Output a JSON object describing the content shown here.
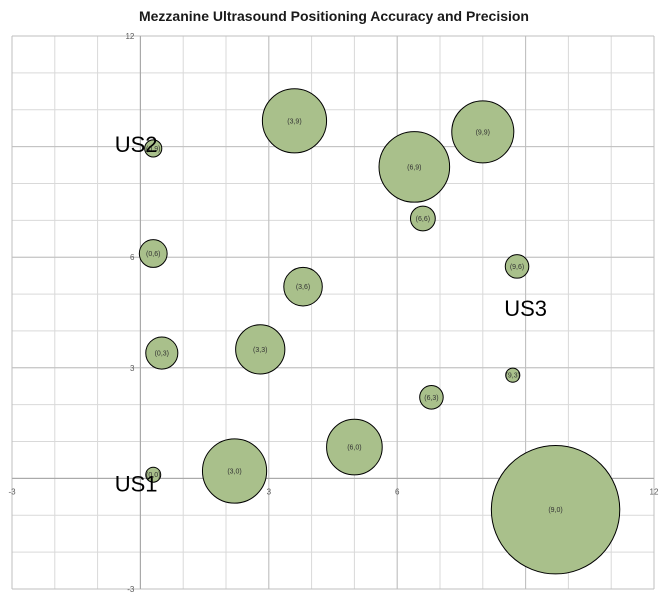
{
  "chart_data": {
    "type": "bubble",
    "title": "Mezzanine Ultrasound Positioning Accuracy and Precision",
    "xlim": [
      -3,
      12
    ],
    "ylim": [
      -3,
      12
    ],
    "x_ticks": [
      "-3",
      "3",
      "6",
      "9",
      "12"
    ],
    "y_ticks": [
      "12",
      "6",
      "3",
      "-3"
    ],
    "grid": true,
    "bubble_color": "#a9c08b",
    "bubble_edge_color": "#000000",
    "points": [
      {
        "label": "(0,0)",
        "x": 0.3,
        "y": 0.1,
        "size": 0.35
      },
      {
        "label": "(3,0)",
        "x": 2.2,
        "y": 0.2,
        "size": 1.5
      },
      {
        "label": "(6,0)",
        "x": 5.0,
        "y": 0.85,
        "size": 1.3
      },
      {
        "label": "(9,0)",
        "x": 9.7,
        "y": -0.85,
        "size": 3.0
      },
      {
        "label": "(0,3)",
        "x": 0.5,
        "y": 3.4,
        "size": 0.75
      },
      {
        "label": "(3,3)",
        "x": 2.8,
        "y": 3.5,
        "size": 1.15
      },
      {
        "label": "(6,3)",
        "x": 6.8,
        "y": 2.2,
        "size": 0.55
      },
      {
        "label": "(9,3)",
        "x": 8.7,
        "y": 2.8,
        "size": 0.33
      },
      {
        "label": "(0,6)",
        "x": 0.3,
        "y": 6.1,
        "size": 0.65
      },
      {
        "label": "(3,6)",
        "x": 3.8,
        "y": 5.2,
        "size": 0.9
      },
      {
        "label": "(6,6)",
        "x": 6.6,
        "y": 7.05,
        "size": 0.58
      },
      {
        "label": "(9,6)",
        "x": 8.8,
        "y": 5.75,
        "size": 0.55
      },
      {
        "label": "(0,9)",
        "x": 0.3,
        "y": 8.95,
        "size": 0.4
      },
      {
        "label": "(3,9)",
        "x": 3.6,
        "y": 9.7,
        "size": 1.5
      },
      {
        "label": "(6,9)",
        "x": 6.4,
        "y": 8.45,
        "size": 1.65
      },
      {
        "label": "(9,9)",
        "x": 8.0,
        "y": 9.4,
        "size": 1.45
      }
    ],
    "annotations": [
      {
        "text": "US1",
        "x": -0.6,
        "y": -0.35
      },
      {
        "text": "US2",
        "x": -0.6,
        "y": 8.85
      },
      {
        "text": "US3",
        "x": 8.5,
        "y": 4.4
      }
    ]
  }
}
